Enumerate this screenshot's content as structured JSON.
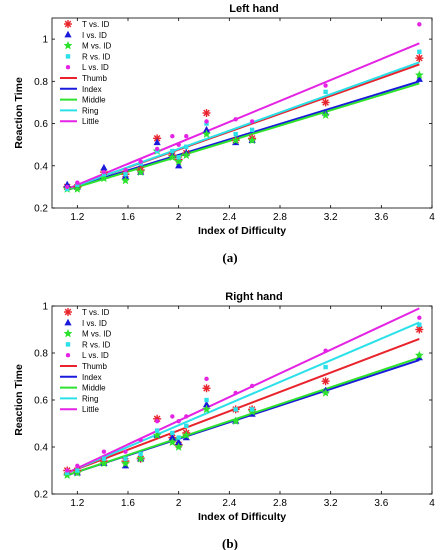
{
  "colors": {
    "T": "#e8232b",
    "I": "#1a1adb",
    "M": "#2de22d",
    "R": "#2be0e8",
    "L": "#e423e4"
  },
  "chart_data": [
    {
      "type": "scatter",
      "title": "Left hand",
      "caption": "(a)",
      "xlabel": "Index of Difficulty",
      "ylabel": "Reaction Time",
      "xlim": [
        1.0,
        4.0
      ],
      "ylim": [
        0.2,
        1.1
      ],
      "xticks": [
        "1.2",
        "1.6",
        "2",
        "2.4",
        "2.8",
        "3.2",
        "3.6",
        "4"
      ],
      "yticks": [
        "0.2",
        "0.4",
        "0.6",
        "0.8",
        "1"
      ],
      "legend": [
        "T vs. ID",
        "I vs. ID",
        "M vs. ID",
        "R vs. ID",
        "L vs. ID",
        "Thumb",
        "Index",
        "Middle",
        "Ring",
        "Little"
      ],
      "series": [
        {
          "name": "T vs. ID",
          "key": "T",
          "marker": "star",
          "points": [
            [
              1.12,
              0.3
            ],
            [
              1.2,
              0.3
            ],
            [
              1.41,
              0.37
            ],
            [
              1.58,
              0.36
            ],
            [
              1.7,
              0.38
            ],
            [
              1.83,
              0.53
            ],
            [
              1.95,
              0.45
            ],
            [
              2.0,
              0.43
            ],
            [
              2.06,
              0.46
            ],
            [
              2.22,
              0.65
            ],
            [
              2.45,
              0.52
            ],
            [
              2.58,
              0.53
            ],
            [
              3.16,
              0.7
            ],
            [
              3.9,
              0.91
            ]
          ]
        },
        {
          "name": "I vs. ID",
          "key": "I",
          "marker": "triangle",
          "points": [
            [
              1.12,
              0.31
            ],
            [
              1.2,
              0.3
            ],
            [
              1.41,
              0.39
            ],
            [
              1.58,
              0.35
            ],
            [
              1.7,
              0.37
            ],
            [
              1.83,
              0.51
            ],
            [
              1.95,
              0.45
            ],
            [
              2.0,
              0.4
            ],
            [
              2.06,
              0.46
            ],
            [
              2.22,
              0.57
            ],
            [
              2.45,
              0.51
            ],
            [
              2.58,
              0.52
            ],
            [
              3.16,
              0.65
            ],
            [
              3.9,
              0.81
            ]
          ]
        },
        {
          "name": "M vs. ID",
          "key": "M",
          "marker": "star",
          "points": [
            [
              1.12,
              0.29
            ],
            [
              1.2,
              0.29
            ],
            [
              1.41,
              0.34
            ],
            [
              1.58,
              0.33
            ],
            [
              1.7,
              0.37
            ],
            [
              1.83,
              0.47
            ],
            [
              1.95,
              0.44
            ],
            [
              2.0,
              0.42
            ],
            [
              2.06,
              0.45
            ],
            [
              2.22,
              0.55
            ],
            [
              2.45,
              0.52
            ],
            [
              2.58,
              0.52
            ],
            [
              3.16,
              0.64
            ],
            [
              3.9,
              0.83
            ]
          ]
        },
        {
          "name": "R vs. ID",
          "key": "R",
          "marker": "square",
          "points": [
            [
              1.12,
              0.29
            ],
            [
              1.2,
              0.31
            ],
            [
              1.41,
              0.36
            ],
            [
              1.58,
              0.36
            ],
            [
              1.7,
              0.41
            ],
            [
              1.83,
              0.47
            ],
            [
              1.95,
              0.47
            ],
            [
              2.0,
              0.44
            ],
            [
              2.06,
              0.49
            ],
            [
              2.22,
              0.6
            ],
            [
              2.45,
              0.55
            ],
            [
              2.58,
              0.57
            ],
            [
              3.16,
              0.75
            ],
            [
              3.9,
              0.94
            ]
          ]
        },
        {
          "name": "L vs. ID",
          "key": "L",
          "marker": "dot",
          "points": [
            [
              1.12,
              0.3
            ],
            [
              1.2,
              0.32
            ],
            [
              1.41,
              0.37
            ],
            [
              1.58,
              0.38
            ],
            [
              1.7,
              0.42
            ],
            [
              1.83,
              0.48
            ],
            [
              1.95,
              0.54
            ],
            [
              2.0,
              0.5
            ],
            [
              2.06,
              0.54
            ],
            [
              2.22,
              0.61
            ],
            [
              2.45,
              0.62
            ],
            [
              2.58,
              0.61
            ],
            [
              3.16,
              0.78
            ],
            [
              3.9,
              1.07
            ]
          ]
        }
      ],
      "fits": [
        {
          "name": "Thumb",
          "key": "T",
          "from": [
            1.12,
            0.29
          ],
          "to": [
            3.9,
            0.88
          ]
        },
        {
          "name": "Index",
          "key": "I",
          "from": [
            1.12,
            0.29
          ],
          "to": [
            3.9,
            0.8
          ]
        },
        {
          "name": "Middle",
          "key": "M",
          "from": [
            1.12,
            0.285
          ],
          "to": [
            3.9,
            0.79
          ]
        },
        {
          "name": "Ring",
          "key": "R",
          "from": [
            1.12,
            0.29
          ],
          "to": [
            3.9,
            0.89
          ]
        },
        {
          "name": "Little",
          "key": "L",
          "from": [
            1.12,
            0.29
          ],
          "to": [
            3.9,
            0.98
          ]
        }
      ]
    },
    {
      "type": "scatter",
      "title": "Right hand",
      "caption": "(b)",
      "xlabel": "Index of Difficulty",
      "ylabel": "Reaction Time",
      "xlim": [
        1.0,
        4.0
      ],
      "ylim": [
        0.2,
        1.0
      ],
      "xticks": [
        "1.2",
        "1.6",
        "2",
        "2.4",
        "2.8",
        "3.2",
        "3.6",
        "4"
      ],
      "yticks": [
        "0.2",
        "0.4",
        "0.6",
        "0.8",
        "1"
      ],
      "legend": [
        "T vs. ID",
        "I vs. ID",
        "M vs. ID",
        "R vs. ID",
        "L vs. ID",
        "Thumb",
        "Index",
        "Middle",
        "Ring",
        "Little"
      ],
      "series": [
        {
          "name": "T vs. ID",
          "key": "T",
          "marker": "star",
          "points": [
            [
              1.12,
              0.3
            ],
            [
              1.2,
              0.3
            ],
            [
              1.41,
              0.34
            ],
            [
              1.58,
              0.34
            ],
            [
              1.7,
              0.35
            ],
            [
              1.83,
              0.52
            ],
            [
              1.95,
              0.44
            ],
            [
              2.0,
              0.41
            ],
            [
              2.06,
              0.46
            ],
            [
              2.22,
              0.65
            ],
            [
              2.45,
              0.56
            ],
            [
              2.58,
              0.56
            ],
            [
              3.16,
              0.68
            ],
            [
              3.9,
              0.9
            ]
          ]
        },
        {
          "name": "I vs. ID",
          "key": "I",
          "marker": "triangle",
          "points": [
            [
              1.12,
              0.29
            ],
            [
              1.2,
              0.29
            ],
            [
              1.41,
              0.33
            ],
            [
              1.58,
              0.32
            ],
            [
              1.7,
              0.35
            ],
            [
              1.83,
              0.45
            ],
            [
              1.95,
              0.44
            ],
            [
              2.0,
              0.42
            ],
            [
              2.06,
              0.44
            ],
            [
              2.22,
              0.58
            ],
            [
              2.45,
              0.51
            ],
            [
              2.58,
              0.54
            ],
            [
              3.16,
              0.64
            ],
            [
              3.9,
              0.78
            ]
          ]
        },
        {
          "name": "M vs. ID",
          "key": "M",
          "marker": "star",
          "points": [
            [
              1.12,
              0.28
            ],
            [
              1.2,
              0.29
            ],
            [
              1.41,
              0.33
            ],
            [
              1.58,
              0.33
            ],
            [
              1.7,
              0.35
            ],
            [
              1.83,
              0.45
            ],
            [
              1.95,
              0.42
            ],
            [
              2.0,
              0.4
            ],
            [
              2.06,
              0.45
            ],
            [
              2.22,
              0.56
            ],
            [
              2.45,
              0.51
            ],
            [
              2.58,
              0.55
            ],
            [
              3.16,
              0.63
            ],
            [
              3.9,
              0.79
            ]
          ]
        },
        {
          "name": "R vs. ID",
          "key": "R",
          "marker": "square",
          "points": [
            [
              1.12,
              0.29
            ],
            [
              1.2,
              0.3
            ],
            [
              1.41,
              0.35
            ],
            [
              1.58,
              0.35
            ],
            [
              1.7,
              0.37
            ],
            [
              1.83,
              0.47
            ],
            [
              1.95,
              0.46
            ],
            [
              2.0,
              0.44
            ],
            [
              2.06,
              0.49
            ],
            [
              2.22,
              0.6
            ],
            [
              2.45,
              0.56
            ],
            [
              2.58,
              0.56
            ],
            [
              3.16,
              0.74
            ],
            [
              3.9,
              0.92
            ]
          ]
        },
        {
          "name": "L vs. ID",
          "key": "L",
          "marker": "dot",
          "points": [
            [
              1.12,
              0.3
            ],
            [
              1.2,
              0.32
            ],
            [
              1.41,
              0.38
            ],
            [
              1.58,
              0.38
            ],
            [
              1.7,
              0.43
            ],
            [
              1.83,
              0.51
            ],
            [
              1.95,
              0.53
            ],
            [
              2.0,
              0.51
            ],
            [
              2.06,
              0.53
            ],
            [
              2.22,
              0.69
            ],
            [
              2.45,
              0.63
            ],
            [
              2.58,
              0.66
            ],
            [
              3.16,
              0.81
            ],
            [
              3.9,
              0.95
            ]
          ]
        }
      ],
      "fits": [
        {
          "name": "Thumb",
          "key": "T",
          "from": [
            1.12,
            0.29
          ],
          "to": [
            3.9,
            0.86
          ]
        },
        {
          "name": "Index",
          "key": "I",
          "from": [
            1.12,
            0.28
          ],
          "to": [
            3.9,
            0.77
          ]
        },
        {
          "name": "Middle",
          "key": "M",
          "from": [
            1.12,
            0.28
          ],
          "to": [
            3.9,
            0.78
          ]
        },
        {
          "name": "Ring",
          "key": "R",
          "from": [
            1.12,
            0.29
          ],
          "to": [
            3.9,
            0.93
          ]
        },
        {
          "name": "Little",
          "key": "L",
          "from": [
            1.12,
            0.29
          ],
          "to": [
            3.9,
            0.99
          ]
        }
      ]
    }
  ]
}
